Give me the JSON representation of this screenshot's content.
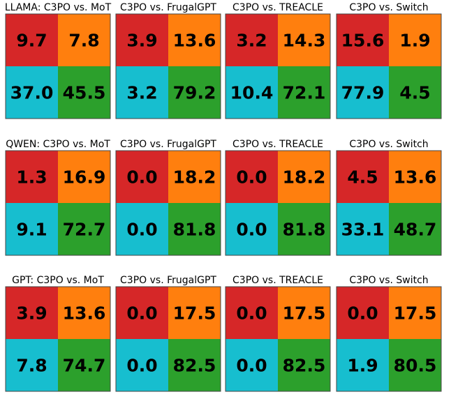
{
  "chart_data": {
    "type": "heatmap",
    "layout": "3x4 grid of 2x2 panels",
    "cell_colors": {
      "top-left": "#d62728",
      "top-right": "#ff7f0e",
      "bottom-left": "#17becf",
      "bottom-right": "#2ca02c"
    },
    "panels": [
      {
        "title": "LLAMA: C3PO vs. MoT",
        "cells": [
          [
            9.7,
            7.8
          ],
          [
            37.0,
            45.5
          ]
        ]
      },
      {
        "title": "C3PO vs. FrugalGPT",
        "cells": [
          [
            3.9,
            13.6
          ],
          [
            3.2,
            79.2
          ]
        ]
      },
      {
        "title": "C3PO vs. TREACLE",
        "cells": [
          [
            3.2,
            14.3
          ],
          [
            10.4,
            72.1
          ]
        ]
      },
      {
        "title": "C3PO vs. Switch",
        "cells": [
          [
            15.6,
            1.9
          ],
          [
            77.9,
            4.5
          ]
        ]
      },
      {
        "title": "QWEN: C3PO vs. MoT",
        "cells": [
          [
            1.3,
            16.9
          ],
          [
            9.1,
            72.7
          ]
        ]
      },
      {
        "title": "C3PO vs. FrugalGPT",
        "cells": [
          [
            0.0,
            18.2
          ],
          [
            0.0,
            81.8
          ]
        ]
      },
      {
        "title": "C3PO vs. TREACLE",
        "cells": [
          [
            0.0,
            18.2
          ],
          [
            0.0,
            81.8
          ]
        ]
      },
      {
        "title": "C3PO vs. Switch",
        "cells": [
          [
            4.5,
            13.6
          ],
          [
            33.1,
            48.7
          ]
        ]
      },
      {
        "title": "GPT: C3PO vs. MoT",
        "cells": [
          [
            3.9,
            13.6
          ],
          [
            7.8,
            74.7
          ]
        ]
      },
      {
        "title": "C3PO vs. FrugalGPT",
        "cells": [
          [
            0.0,
            17.5
          ],
          [
            0.0,
            82.5
          ]
        ]
      },
      {
        "title": "C3PO vs. TREACLE",
        "cells": [
          [
            0.0,
            17.5
          ],
          [
            0.0,
            82.5
          ]
        ]
      },
      {
        "title": "C3PO vs. Switch",
        "cells": [
          [
            0.0,
            17.5
          ],
          [
            1.9,
            80.5
          ]
        ]
      }
    ]
  }
}
